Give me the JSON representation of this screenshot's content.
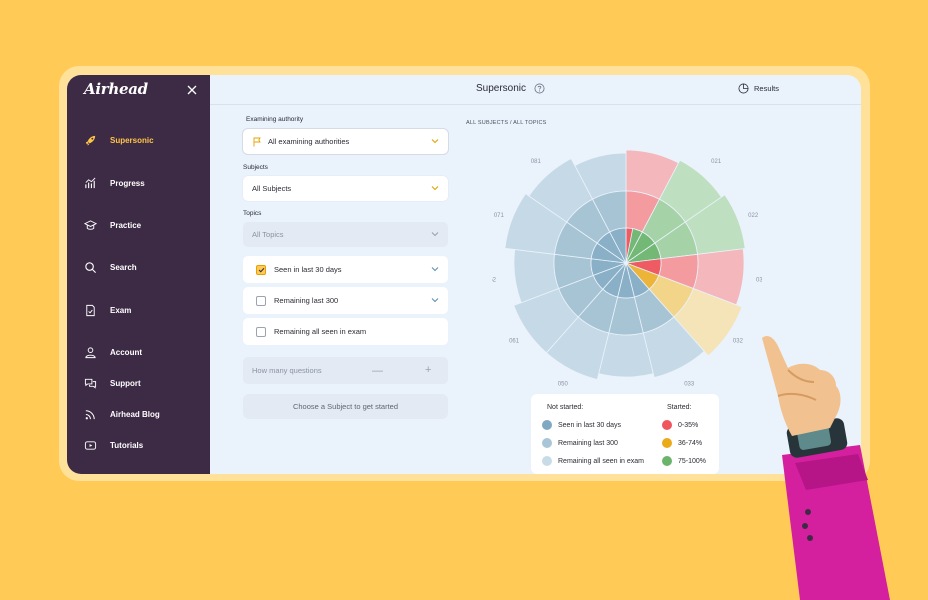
{
  "app": {
    "logo": "Airhead",
    "page_title": "Supersonic",
    "results_label": "Results"
  },
  "sidebar": {
    "items": [
      {
        "label": "Supersonic",
        "icon": "rocket-icon",
        "active": true
      },
      {
        "label": "Progress",
        "icon": "chart-trend-icon"
      },
      {
        "label": "Practice",
        "icon": "graduation-cap-icon"
      },
      {
        "label": "Search",
        "icon": "search-icon"
      },
      {
        "label": "Exam",
        "icon": "exam-sheet-icon"
      },
      {
        "label": "Account",
        "icon": "user-icon"
      },
      {
        "label": "Support",
        "icon": "chat-bubbles-icon"
      },
      {
        "label": "Airhead Blog",
        "icon": "rss-icon"
      },
      {
        "label": "Tutorials",
        "icon": "youtube-icon"
      }
    ]
  },
  "filters": {
    "authority_label": "Examining authority",
    "authority_value": "All examining authorities",
    "subjects_label": "Subjects",
    "subjects_value": "All Subjects",
    "topics_label": "Topics",
    "topics_value": "All Topics",
    "checkboxes": [
      {
        "label": "Seen in last 30 days",
        "checked": true
      },
      {
        "label": "Remaining last 300",
        "checked": false
      },
      {
        "label": "Remaining all seen in exam",
        "checked": false
      }
    ],
    "question_count_placeholder": "How many questions",
    "start_button": "Choose a Subject to get started"
  },
  "chart": {
    "breadcrumb": "ALL SUBJECTS / ALL TOPICS",
    "sectors": [
      "010",
      "021",
      "022",
      "031",
      "032",
      "033",
      "040",
      "050",
      "061",
      "062",
      "071",
      "081",
      "090"
    ]
  },
  "legend": {
    "not_started_title": "Not started:",
    "started_title": "Started:",
    "not_started": [
      {
        "label": "Seen in last 30 days",
        "color": "#7FA9C2"
      },
      {
        "label": "Remaining last 300",
        "color": "#A9C6D7"
      },
      {
        "label": "Remaining all seen in exam",
        "color": "#C8DCE8"
      }
    ],
    "started": [
      {
        "label": "0-35%",
        "color": "#F0555E"
      },
      {
        "label": "36-74%",
        "color": "#EBAA1A"
      },
      {
        "label": "75-100%",
        "color": "#6BB46C"
      }
    ]
  },
  "colors": {
    "accent": "#FFCB56",
    "sidebar_bg": "#3D2B46"
  }
}
